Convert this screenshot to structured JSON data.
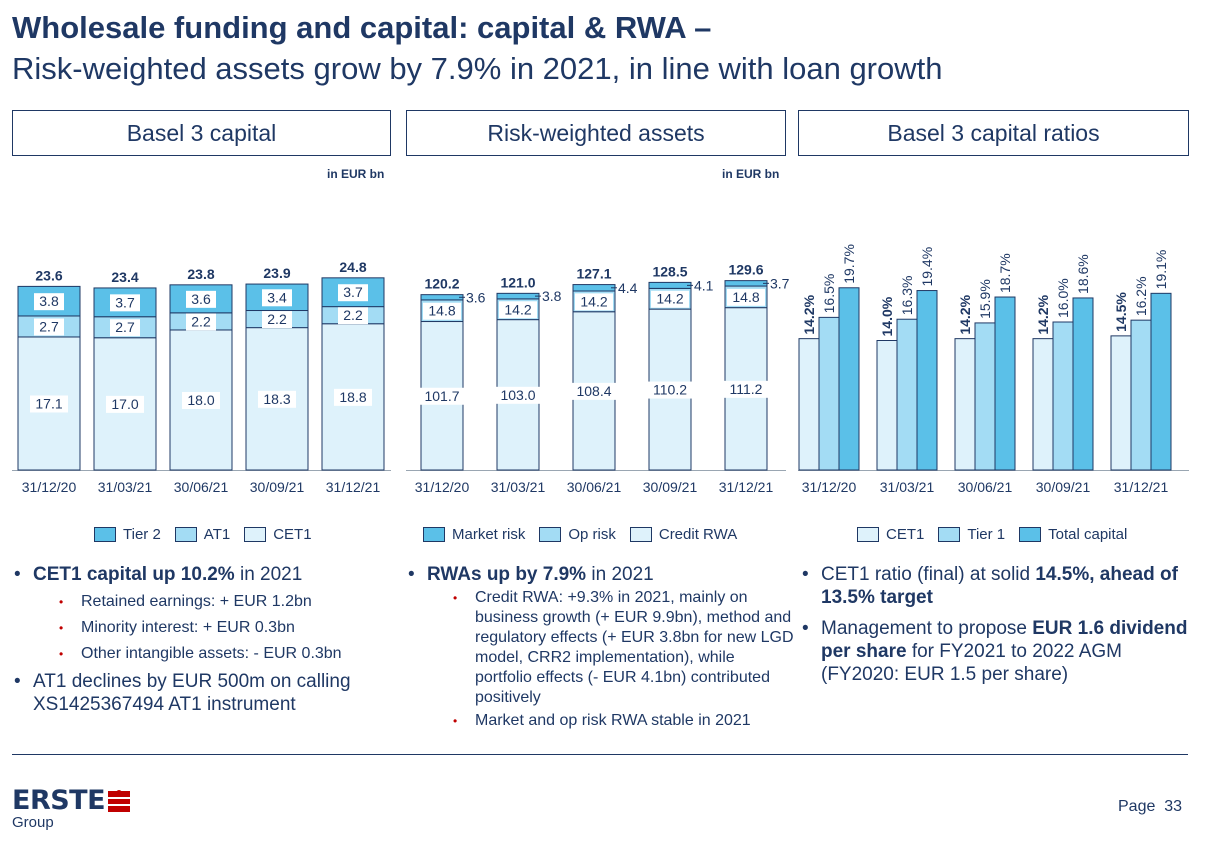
{
  "header": {
    "title": "Wholesale funding and capital: capital & RWA –",
    "subtitle": "Risk-weighted assets grow by 7.9% in 2021, in line with loan growth"
  },
  "panels": {
    "capital": {
      "heading": "Basel 3 capital",
      "unit": "in EUR bn"
    },
    "rwa": {
      "heading": "Risk-weighted assets",
      "unit": "in EUR bn"
    },
    "ratios": {
      "heading": "Basel 3 capital ratios"
    }
  },
  "colors": {
    "dark": "#5bc0e8",
    "mid": "#a3dcf4",
    "light": "#def2fb",
    "outline": "#1f3864",
    "axis": "#9aa6b2",
    "accent_red": "#c00000"
  },
  "chart_data": [
    {
      "type": "bar",
      "stacked": true,
      "categories": [
        "31/12/20",
        "31/03/21",
        "30/06/21",
        "30/09/21",
        "31/12/21"
      ],
      "series": [
        {
          "name": "CET1",
          "values": [
            17.1,
            17.0,
            18.0,
            18.3,
            18.8
          ],
          "labels": [
            "17.1",
            "17.0",
            "18.0",
            "18.3",
            "18.8"
          ]
        },
        {
          "name": "AT1",
          "values": [
            2.7,
            2.7,
            2.2,
            2.2,
            2.2
          ],
          "labels": [
            "2.7",
            "2.7",
            "2.2",
            "2.2",
            "2.2"
          ]
        },
        {
          "name": "Tier 2",
          "values": [
            3.8,
            3.7,
            3.6,
            3.4,
            3.7
          ],
          "labels": [
            "3.8",
            "3.7",
            "3.6",
            "3.4",
            "3.7"
          ]
        }
      ],
      "totals": [
        "23.6",
        "23.4",
        "23.8",
        "23.9",
        "24.8"
      ],
      "legend": [
        "Tier 2",
        "AT1",
        "CET1"
      ]
    },
    {
      "type": "bar",
      "stacked": true,
      "categories": [
        "31/12/20",
        "31/03/21",
        "30/06/21",
        "30/09/21",
        "31/12/21"
      ],
      "series": [
        {
          "name": "Credit RWA",
          "values": [
            101.7,
            103.0,
            108.4,
            110.2,
            111.2
          ],
          "labels": [
            "101.7",
            "103.0",
            "108.4",
            "110.2",
            "111.2"
          ]
        },
        {
          "name": "Op risk",
          "values": [
            14.8,
            14.2,
            14.2,
            14.2,
            14.8
          ],
          "labels": [
            "14.8",
            "14.2",
            "14.2",
            "14.2",
            "14.8"
          ]
        },
        {
          "name": "Market risk",
          "values": [
            3.6,
            3.8,
            4.4,
            4.1,
            3.7
          ],
          "labels": [
            "3.6",
            "3.8",
            "4.4",
            "4.1",
            "3.7"
          ]
        }
      ],
      "totals": [
        "120.2",
        "121.0",
        "127.1",
        "128.5",
        "129.6"
      ],
      "legend": [
        "Market risk",
        "Op risk",
        "Credit RWA"
      ]
    },
    {
      "type": "bar",
      "stacked": false,
      "categories": [
        "31/12/20",
        "31/03/21",
        "30/06/21",
        "30/09/21",
        "31/12/21"
      ],
      "series": [
        {
          "name": "CET1",
          "values": [
            14.2,
            14.0,
            14.2,
            14.2,
            14.5
          ],
          "labels": [
            "14.2%",
            "14.0%",
            "14.2%",
            "14.2%",
            "14.5%"
          ]
        },
        {
          "name": "Tier 1",
          "values": [
            16.5,
            16.3,
            15.9,
            16.0,
            16.2
          ],
          "labels": [
            "16.5%",
            "16.3%",
            "15.9%",
            "16.0%",
            "16.2%"
          ]
        },
        {
          "name": "Total capital",
          "values": [
            19.7,
            19.4,
            18.7,
            18.6,
            19.1
          ],
          "labels": [
            "19.7%",
            "19.4%",
            "18.7%",
            "18.6%",
            "19.1%"
          ]
        }
      ],
      "legend": [
        "CET1",
        "Tier 1",
        "Total capital"
      ]
    }
  ],
  "bullets": {
    "col1": {
      "b1_bold": "CET1 capital up 10.2%",
      "b1_rest": " in 2021",
      "s1": "Retained earnings: + EUR 1.2bn",
      "s2": "Minority interest: + EUR 0.3bn",
      "s3": "Other intangible assets: - EUR 0.3bn",
      "b2": "AT1 declines by EUR 500m on calling XS1425367494 AT1 instrument"
    },
    "col2": {
      "b1_bold": "RWAs up by 7.9%",
      "b1_rest": " in 2021",
      "s1": "Credit RWA: +9.3% in 2021, mainly on business growth (+ EUR 9.9bn), method and regulatory effects (+ EUR 3.8bn for new LGD model, CRR2 implementation), while portfolio effects (- EUR 4.1bn) contributed positively",
      "s2": "Market and op risk RWA stable in 2021"
    },
    "col3": {
      "b1_pre": "CET1 ratio (final) at solid ",
      "b1_bold": "14.5%, ahead of 13.5% target",
      "b2_pre": "Management to propose ",
      "b2_bold": "EUR 1.6 dividend per share",
      "b2_rest": " for FY2021 to 2022 AGM (FY2020: EUR 1.5 per share)"
    }
  },
  "footer": {
    "logo": "ERSTE",
    "logo_sub": "Group",
    "page_label": "Page",
    "page_number": "33"
  }
}
